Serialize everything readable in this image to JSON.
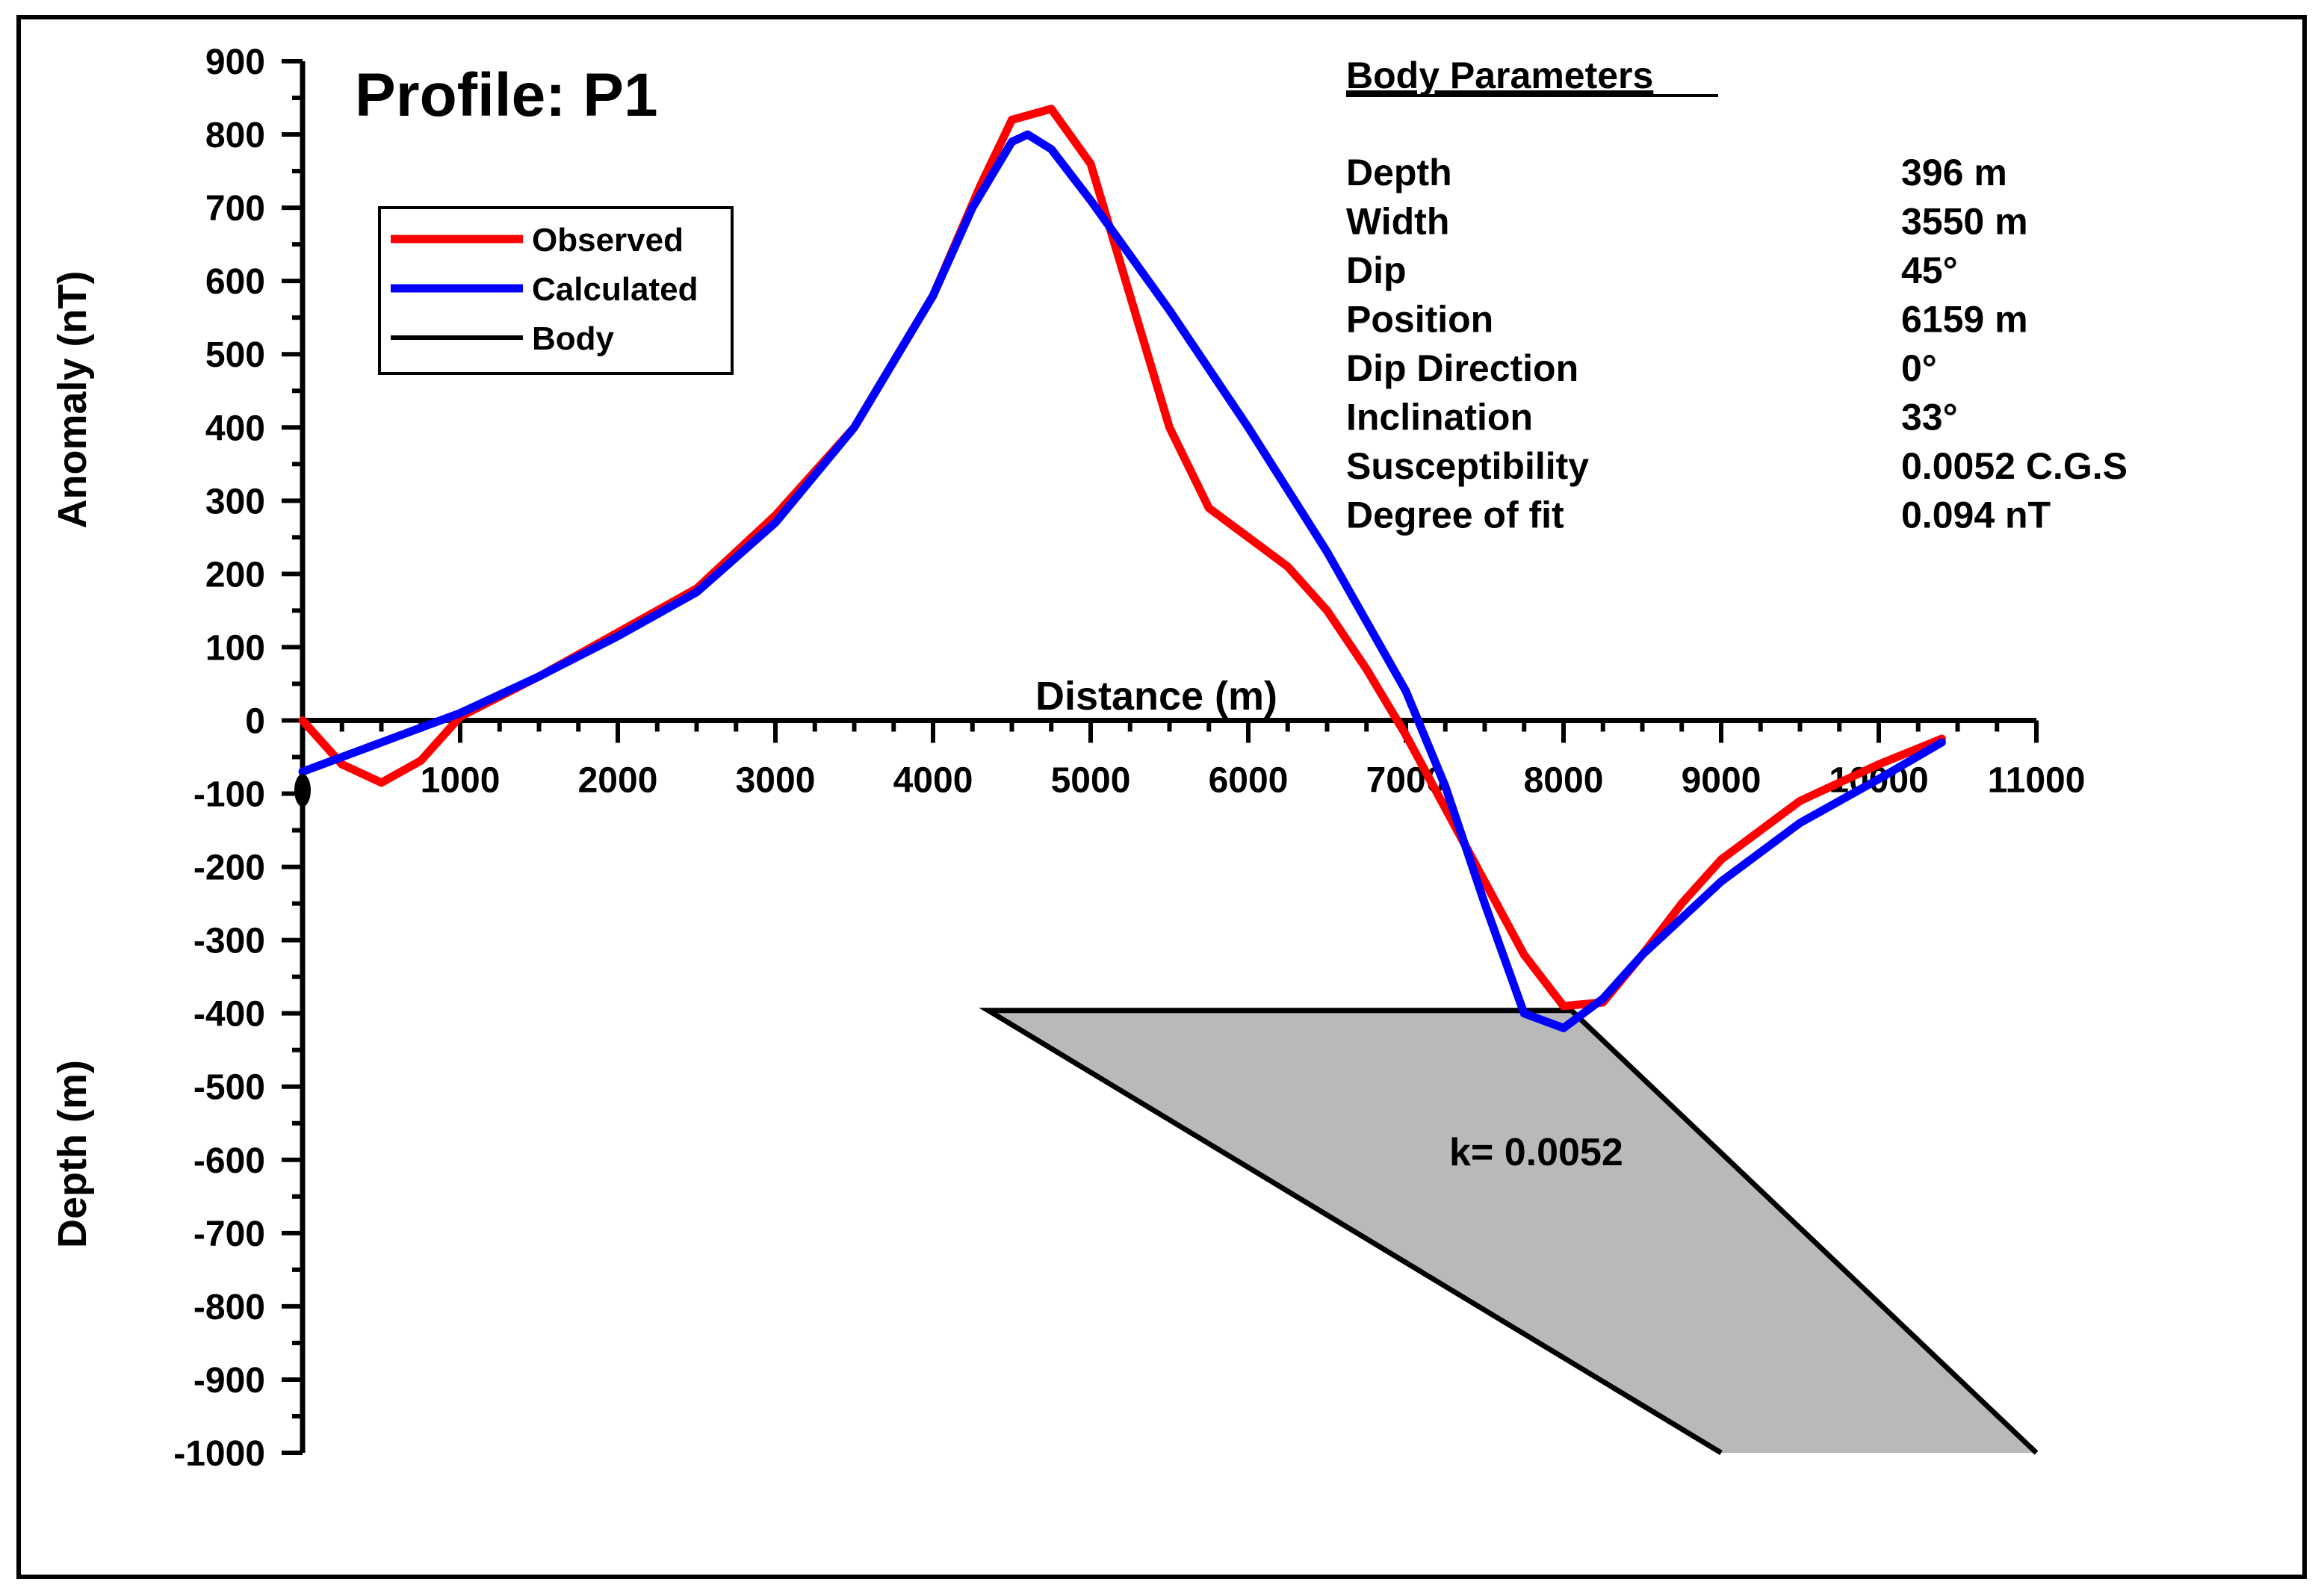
{
  "chart_data": {
    "type": "line",
    "title": "Profile: P1",
    "xlabel": "Distance (m)",
    "ylabel_top": "Anomaly (nT)",
    "ylabel_bottom": "Depth (m)",
    "xlim": [
      0,
      11000
    ],
    "ylim": [
      -1000,
      900
    ],
    "x_ticks": [
      0,
      1000,
      2000,
      3000,
      4000,
      5000,
      6000,
      7000,
      8000,
      9000,
      10000,
      11000
    ],
    "x_tick_labels": [
      "0",
      "1000",
      "2000",
      "3000",
      "4000",
      "5000",
      "6000",
      "7000",
      "8000",
      "9000",
      "10000",
      "11000"
    ],
    "y_ticks": [
      900,
      800,
      700,
      600,
      500,
      400,
      300,
      200,
      100,
      0,
      -100,
      -200,
      -300,
      -400,
      -500,
      -600,
      -700,
      -800,
      -900,
      -1000
    ],
    "y_tick_labels": [
      "900",
      "800",
      "700",
      "600",
      "500",
      "400",
      "300",
      "200",
      "100",
      "0",
      "-100",
      "-200",
      "-300",
      "-400",
      "-500",
      "-600",
      "-700",
      "-800",
      "-900",
      "-1000"
    ],
    "series": [
      {
        "name": "Observed",
        "color": "#ff0000",
        "x": [
          0,
          250,
          500,
          750,
          1000,
          1500,
          2000,
          2500,
          3000,
          3500,
          4000,
          4300,
          4500,
          4750,
          5000,
          5250,
          5500,
          5750,
          6000,
          6250,
          6500,
          6750,
          7000,
          7250,
          7500,
          7750,
          8000,
          8250,
          8500,
          8750,
          9000,
          9500,
          10000,
          10400
        ],
        "y": [
          0,
          -60,
          -85,
          -55,
          5,
          60,
          120,
          180,
          280,
          400,
          580,
          730,
          820,
          835,
          760,
          580,
          400,
          290,
          250,
          210,
          150,
          70,
          -20,
          -120,
          -220,
          -320,
          -390,
          -385,
          -320,
          -250,
          -190,
          -110,
          -60,
          -25
        ]
      },
      {
        "name": "Calculated",
        "color": "#0000ff",
        "x": [
          0,
          250,
          500,
          750,
          1000,
          1500,
          2000,
          2500,
          3000,
          3500,
          4000,
          4250,
          4500,
          4600,
          4750,
          5000,
          5500,
          6000,
          6500,
          7000,
          7250,
          7500,
          7750,
          8000,
          8250,
          8500,
          9000,
          9500,
          10000,
          10400
        ],
        "y": [
          -70,
          -50,
          -30,
          -10,
          10,
          60,
          115,
          175,
          270,
          400,
          580,
          700,
          790,
          800,
          780,
          710,
          560,
          400,
          230,
          40,
          -90,
          -250,
          -400,
          -420,
          -380,
          -320,
          -220,
          -140,
          -80,
          -30
        ]
      },
      {
        "name": "Body",
        "color": "#000000",
        "type": "polygon",
        "fill": "#b9b9b9",
        "x": [
          4350,
          8050,
          11000,
          9000
        ],
        "y": [
          -396,
          -396,
          -1000,
          -1000
        ]
      }
    ],
    "legend": {
      "placement": "top-left",
      "entries": [
        {
          "label": "Observed",
          "color": "#ff0000"
        },
        {
          "label": "Calculated",
          "color": "#0000ff"
        },
        {
          "label": "Body",
          "color": "#000000"
        }
      ]
    },
    "annotations": {
      "body_label": "k= 0.0052",
      "params_title": "Body Parameters",
      "params": [
        {
          "name": "Depth",
          "value": "396 m"
        },
        {
          "name": "Width",
          "value": "3550 m"
        },
        {
          "name": "Dip",
          "value": "45°"
        },
        {
          "name": "Position",
          "value": "6159 m"
        },
        {
          "name": "Dip Direction",
          "value": "0°"
        },
        {
          "name": "Inclination",
          "value": "33°"
        },
        {
          "name": "Susceptibility",
          "value": "0.0052 C.G.S"
        },
        {
          "name": "Degree of fit",
          "value": "0.094 nT"
        }
      ]
    }
  }
}
